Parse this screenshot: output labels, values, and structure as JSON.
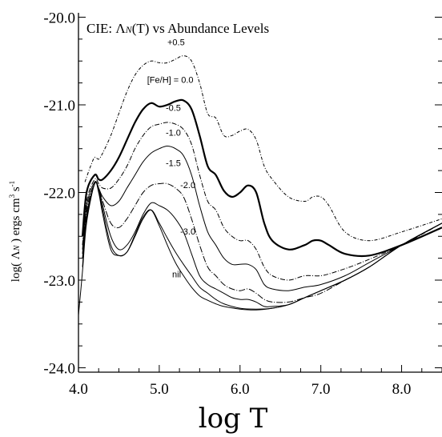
{
  "chart_data": {
    "type": "line",
    "title_prefix": "CIE:  ",
    "title_symbol": "Λ",
    "title_symbol_sub": "N",
    "title_suffix": "(T) vs Abundance Levels",
    "xlabel": "log T",
    "ylabel_prefix": "log( ",
    "ylabel_symbol": "Λ",
    "ylabel_symbol_sub": "N",
    "ylabel_suffix": " ) ergs cm",
    "ylabel_sup1": "3",
    "ylabel_mid": " s",
    "ylabel_sup2": "-1",
    "xlim": [
      4.0,
      8.5
    ],
    "ylim": [
      -24.05,
      -19.95
    ],
    "xticks": [
      "4.0",
      "5.0",
      "6.0",
      "7.0",
      "8.0"
    ],
    "xtick_values": [
      4.0,
      5.0,
      6.0,
      7.0,
      8.0
    ],
    "yticks": [
      "-20.0",
      "-21.0",
      "-22.0",
      "-23.0",
      "-24.0"
    ],
    "ytick_values": [
      -20.0,
      -21.0,
      -22.0,
      -23.0,
      -24.0
    ],
    "grid": false,
    "series": [
      {
        "name": "+0.5",
        "label_x": 5.1,
        "label_y": -20.32,
        "width": 1.0,
        "dash": "4,2,1,2",
        "x": [
          4.08,
          4.15,
          4.2,
          4.25,
          4.3,
          4.4,
          4.5,
          4.6,
          4.7,
          4.8,
          4.9,
          5.0,
          5.1,
          5.2,
          5.3,
          5.4,
          5.5,
          5.6,
          5.7,
          5.8,
          5.9,
          6.0,
          6.1,
          6.2,
          6.3,
          6.4,
          6.6,
          6.8,
          6.9,
          7.0,
          7.1,
          7.3,
          7.6,
          8.0,
          8.5
        ],
        "y": [
          -21.88,
          -21.7,
          -21.6,
          -21.62,
          -21.55,
          -21.35,
          -21.1,
          -20.85,
          -20.66,
          -20.55,
          -20.5,
          -20.52,
          -20.52,
          -20.48,
          -20.44,
          -20.5,
          -20.75,
          -21.1,
          -21.15,
          -21.35,
          -21.35,
          -21.3,
          -21.28,
          -21.4,
          -21.7,
          -21.85,
          -22.05,
          -22.1,
          -22.05,
          -22.05,
          -22.15,
          -22.45,
          -22.55,
          -22.45,
          -22.3
        ]
      },
      {
        "name": "[Fe/H] = 0.0",
        "label_x": 4.85,
        "label_y": -20.75,
        "width": 2.2,
        "dash": "",
        "x": [
          4.05,
          4.1,
          4.2,
          4.25,
          4.3,
          4.4,
          4.5,
          4.6,
          4.7,
          4.8,
          4.9,
          5.0,
          5.1,
          5.2,
          5.3,
          5.4,
          5.5,
          5.6,
          5.7,
          5.8,
          5.9,
          6.0,
          6.1,
          6.2,
          6.3,
          6.4,
          6.6,
          6.8,
          6.9,
          7.0,
          7.1,
          7.3,
          7.6,
          8.0,
          8.5
        ],
        "y": [
          -22.5,
          -22.0,
          -21.8,
          -21.85,
          -21.85,
          -21.75,
          -21.6,
          -21.4,
          -21.2,
          -21.05,
          -20.98,
          -21.02,
          -21.0,
          -20.96,
          -20.95,
          -21.05,
          -21.35,
          -21.7,
          -21.8,
          -21.98,
          -22.05,
          -22.0,
          -21.92,
          -22.0,
          -22.35,
          -22.55,
          -22.65,
          -22.6,
          -22.55,
          -22.55,
          -22.6,
          -22.7,
          -22.72,
          -22.6,
          -22.4
        ]
      },
      {
        "name": "-0.5",
        "label_x": 5.08,
        "label_y": -21.07,
        "width": 1.0,
        "dash": "6,2,1,2",
        "x": [
          4.05,
          4.1,
          4.2,
          4.25,
          4.3,
          4.4,
          4.5,
          4.6,
          4.7,
          4.8,
          4.9,
          5.0,
          5.1,
          5.2,
          5.3,
          5.4,
          5.5,
          5.6,
          5.7,
          5.8,
          5.9,
          6.0,
          6.1,
          6.2,
          6.3,
          6.4,
          6.6,
          6.8,
          7.0,
          7.2,
          7.5,
          8.0,
          8.5
        ],
        "y": [
          -22.6,
          -22.1,
          -21.85,
          -21.9,
          -21.95,
          -21.95,
          -21.85,
          -21.7,
          -21.5,
          -21.35,
          -21.25,
          -21.22,
          -21.2,
          -21.22,
          -21.28,
          -21.45,
          -21.8,
          -22.1,
          -22.2,
          -22.4,
          -22.5,
          -22.55,
          -22.55,
          -22.65,
          -22.85,
          -22.95,
          -23.0,
          -22.95,
          -22.95,
          -22.9,
          -22.8,
          -22.6,
          -22.35
        ]
      },
      {
        "name": "-1.0",
        "label_x": 5.08,
        "label_y": -21.35,
        "width": 1.0,
        "dash": "",
        "x": [
          4.05,
          4.1,
          4.2,
          4.25,
          4.3,
          4.4,
          4.5,
          4.6,
          4.7,
          4.8,
          4.9,
          5.0,
          5.1,
          5.2,
          5.3,
          5.4,
          5.5,
          5.6,
          5.7,
          5.8,
          5.9,
          6.0,
          6.1,
          6.2,
          6.3,
          6.4,
          6.6,
          6.8,
          7.0,
          7.3,
          7.6,
          8.0,
          8.5
        ],
        "y": [
          -22.65,
          -22.15,
          -21.88,
          -21.95,
          -22.05,
          -22.15,
          -22.1,
          -21.95,
          -21.8,
          -21.65,
          -21.55,
          -21.5,
          -21.47,
          -21.5,
          -21.58,
          -21.8,
          -22.15,
          -22.45,
          -22.6,
          -22.75,
          -22.82,
          -22.82,
          -22.82,
          -22.88,
          -23.05,
          -23.1,
          -23.12,
          -23.08,
          -23.05,
          -22.95,
          -22.8,
          -22.6,
          -22.35
        ]
      },
      {
        "name": "-1.5",
        "label_x": 5.08,
        "label_y": -21.7,
        "width": 1.0,
        "dash": "8,2,1,2",
        "x": [
          4.05,
          4.1,
          4.2,
          4.25,
          4.3,
          4.4,
          4.5,
          4.6,
          4.7,
          4.8,
          4.9,
          5.0,
          5.1,
          5.2,
          5.3,
          5.4,
          5.5,
          5.6,
          5.7,
          5.8,
          5.9,
          6.0,
          6.1,
          6.2,
          6.3,
          6.4,
          6.6,
          6.8,
          7.0,
          7.3,
          7.6,
          8.0,
          8.5
        ],
        "y": [
          -22.7,
          -22.2,
          -21.9,
          -21.95,
          -22.1,
          -22.35,
          -22.4,
          -22.3,
          -22.15,
          -22.0,
          -21.92,
          -21.9,
          -21.9,
          -21.95,
          -22.05,
          -22.3,
          -22.6,
          -22.85,
          -22.95,
          -23.05,
          -23.1,
          -23.12,
          -23.1,
          -23.15,
          -23.22,
          -23.25,
          -23.25,
          -23.2,
          -23.15,
          -23.0,
          -22.85,
          -22.6,
          -22.35
        ]
      },
      {
        "name": "-2.0",
        "label_x": 5.26,
        "label_y": -21.95,
        "width": 1.0,
        "dash": "",
        "x": [
          4.05,
          4.1,
          4.2,
          4.25,
          4.3,
          4.4,
          4.5,
          4.6,
          4.7,
          4.8,
          4.9,
          5.0,
          5.1,
          5.2,
          5.3,
          5.4,
          5.5,
          5.6,
          5.7,
          5.8,
          5.9,
          6.0,
          6.1,
          6.2,
          6.3,
          6.4,
          6.6,
          6.8,
          7.0,
          7.3,
          7.6,
          8.0,
          8.5
        ],
        "y": [
          -22.75,
          -22.25,
          -21.9,
          -21.95,
          -22.15,
          -22.5,
          -22.65,
          -22.6,
          -22.45,
          -22.25,
          -22.12,
          -22.15,
          -22.2,
          -22.3,
          -22.45,
          -22.7,
          -22.95,
          -23.05,
          -23.1,
          -23.15,
          -23.2,
          -23.22,
          -23.22,
          -23.25,
          -23.3,
          -23.3,
          -23.28,
          -23.2,
          -23.12,
          -23.0,
          -22.85,
          -22.6,
          -22.35
        ]
      },
      {
        "name": "-3.0",
        "label_x": 5.26,
        "label_y": -22.48,
        "width": 1.0,
        "dash": "",
        "x": [
          4.05,
          4.1,
          4.2,
          4.25,
          4.3,
          4.4,
          4.5,
          4.6,
          4.7,
          4.8,
          4.9,
          5.0,
          5.1,
          5.2,
          5.3,
          5.4,
          5.5,
          5.6,
          5.7,
          5.8,
          6.0,
          6.2,
          6.4,
          6.6,
          6.8,
          7.0,
          7.3,
          7.6,
          8.0,
          8.5
        ],
        "y": [
          -22.85,
          -22.3,
          -21.9,
          -21.98,
          -22.2,
          -22.6,
          -22.72,
          -22.68,
          -22.5,
          -22.3,
          -22.2,
          -22.35,
          -22.52,
          -22.68,
          -22.82,
          -22.95,
          -23.08,
          -23.15,
          -23.22,
          -23.27,
          -23.32,
          -23.33,
          -23.32,
          -23.28,
          -23.2,
          -23.12,
          -23.0,
          -22.85,
          -22.6,
          -22.35
        ]
      },
      {
        "name": "nil",
        "label_x": 5.16,
        "label_y": -22.97,
        "width": 1.0,
        "dash": "",
        "x": [
          4.0,
          4.05,
          4.1,
          4.2,
          4.25,
          4.3,
          4.4,
          4.5,
          4.6,
          4.7,
          4.8,
          4.9,
          5.0,
          5.1,
          5.2,
          5.3,
          5.4,
          5.5,
          5.6,
          5.7,
          5.8,
          6.0,
          6.2,
          6.4,
          6.6,
          6.8,
          7.0,
          7.3,
          7.6,
          8.0,
          8.5
        ],
        "y": [
          -23.4,
          -22.9,
          -22.35,
          -21.9,
          -22.0,
          -22.25,
          -22.65,
          -22.72,
          -22.68,
          -22.48,
          -22.28,
          -22.2,
          -22.38,
          -22.6,
          -22.8,
          -22.95,
          -23.08,
          -23.18,
          -23.23,
          -23.27,
          -23.3,
          -23.33,
          -23.34,
          -23.32,
          -23.28,
          -23.2,
          -23.12,
          -23.0,
          -22.85,
          -22.6,
          -22.35
        ]
      }
    ]
  }
}
